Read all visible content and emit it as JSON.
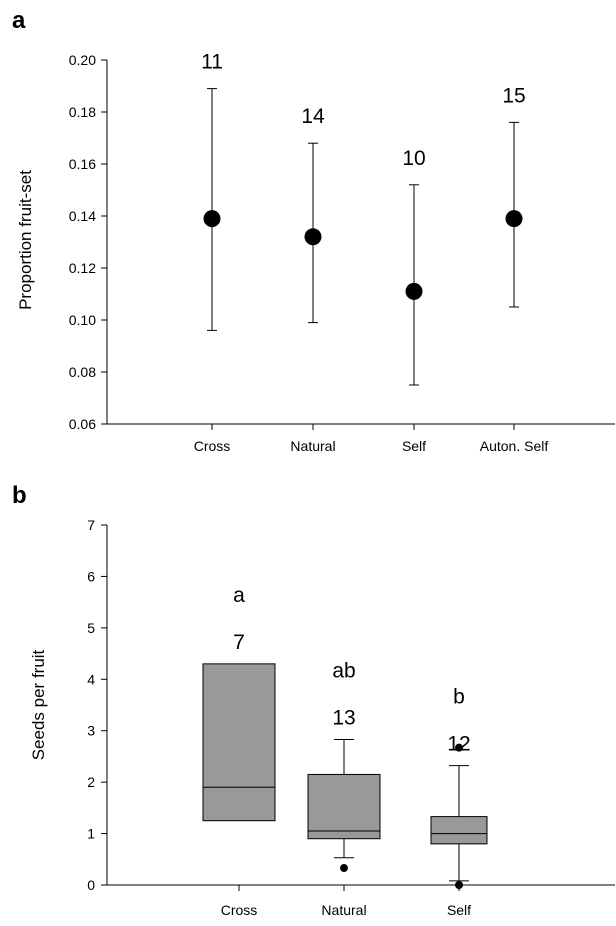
{
  "chart_data": [
    {
      "panel": "a",
      "type": "scatter",
      "ylabel": "Proportion fruit-set",
      "ylim": [
        0.06,
        0.2
      ],
      "yticks": [
        "0.06",
        "0.08",
        "0.10",
        "0.12",
        "0.14",
        "0.16",
        "0.18",
        "0.20"
      ],
      "categories": [
        "Cross",
        "Natural",
        "Self",
        "Auton. Self"
      ],
      "values": [
        0.139,
        0.132,
        0.111,
        0.139
      ],
      "error_low": [
        0.096,
        0.099,
        0.075,
        0.105
      ],
      "error_high": [
        0.189,
        0.168,
        0.152,
        0.176
      ],
      "n_labels": [
        "11",
        "14",
        "10",
        "15"
      ],
      "grid": false
    },
    {
      "panel": "b",
      "type": "box",
      "ylabel": "Seeds per fruit",
      "ylim": [
        0,
        7
      ],
      "yticks": [
        "0",
        "1",
        "2",
        "3",
        "4",
        "5",
        "6",
        "7"
      ],
      "categories": [
        "Cross",
        "Natural",
        "Self"
      ],
      "boxes": [
        {
          "q1": 1.25,
          "median": 1.9,
          "q3": 4.3,
          "whisker_low": null,
          "whisker_high": null,
          "outliers": []
        },
        {
          "q1": 0.9,
          "median": 1.05,
          "q3": 2.15,
          "whisker_low": 0.53,
          "whisker_high": 2.83,
          "outliers": [
            0.33
          ]
        },
        {
          "q1": 0.8,
          "median": 1.0,
          "q3": 1.33,
          "whisker_low": 0.08,
          "whisker_high": 2.32,
          "outliers": [
            2.67,
            0.0
          ]
        }
      ],
      "n_labels": [
        "7",
        "13",
        "12"
      ],
      "letters": [
        "a",
        "ab",
        "b"
      ],
      "colors": {
        "box_fill": "#999999"
      },
      "grid": false
    }
  ]
}
